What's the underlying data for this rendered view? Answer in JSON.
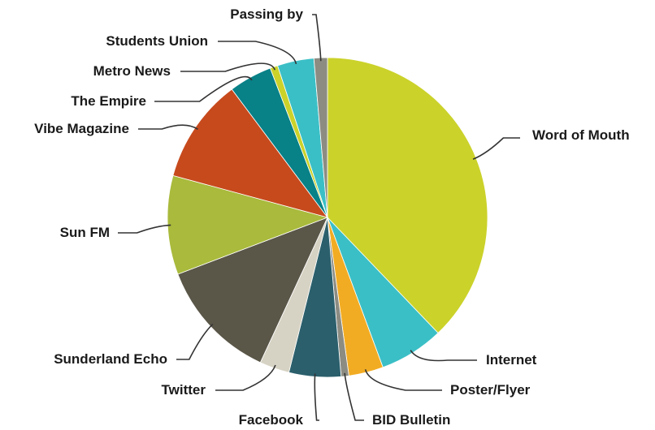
{
  "chart_data": {
    "type": "pie",
    "title": "",
    "start": "12 o'clock, clockwise",
    "slices": [
      {
        "label": "Word of Mouth",
        "value": 39.0,
        "color": "#cbd22a"
      },
      {
        "label": "Internet",
        "value": 6.7,
        "color": "#3bbfc6"
      },
      {
        "label": "Poster/Flyer",
        "value": 3.6,
        "color": "#f2ac23"
      },
      {
        "label": "BID Bulletin",
        "value": 0.8,
        "color": "#8c8c83"
      },
      {
        "label": "Facebook",
        "value": 5.4,
        "color": "#2b5f6c"
      },
      {
        "label": "Twitter",
        "value": 3.1,
        "color": "#d7d3c4"
      },
      {
        "label": "Sunderland Echo",
        "value": 12.7,
        "color": "#5a5648"
      },
      {
        "label": "Sun FM",
        "value": 10.3,
        "color": "#a9ba3c"
      },
      {
        "label": "Vibe Magazine",
        "value": 10.9,
        "color": "#c74a1d"
      },
      {
        "label": "The Empire",
        "value": 4.5,
        "color": "#088187"
      },
      {
        "label": "Metro News",
        "value": 0.8,
        "color": "#cbd22a"
      },
      {
        "label": "Students Union",
        "value": 3.8,
        "color": "#3bbfc6"
      },
      {
        "label": "Passing by",
        "value": 1.4,
        "color": "#8c8c83"
      }
    ],
    "legend": "none (labels with leader lines)"
  }
}
